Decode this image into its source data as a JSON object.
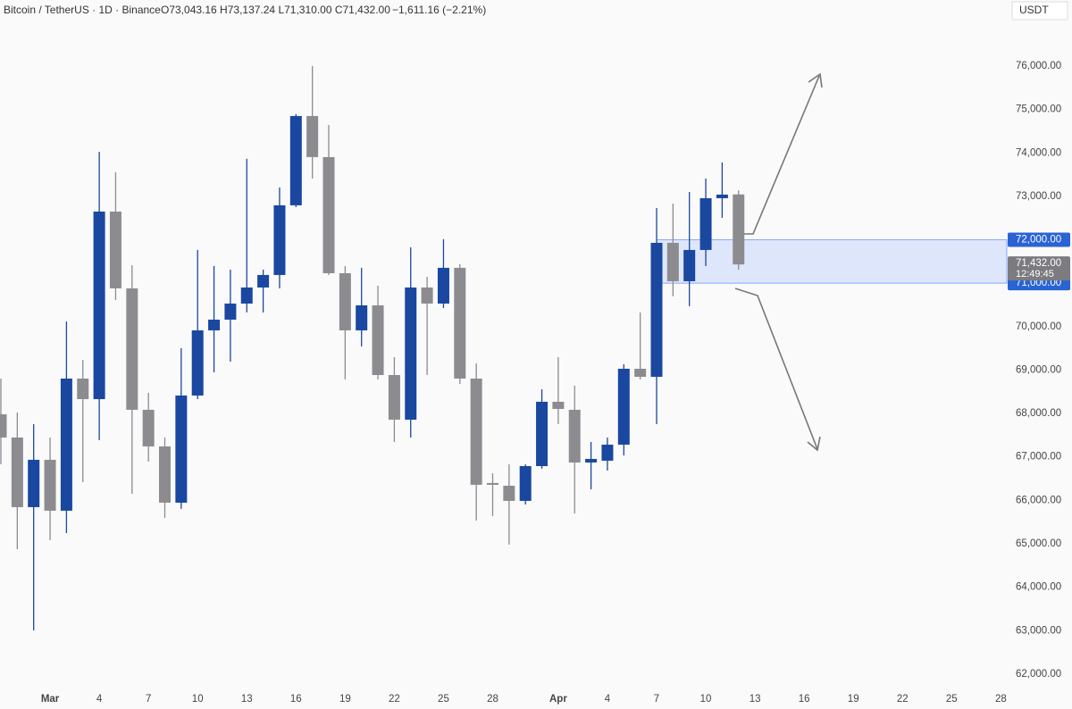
{
  "chart_data": {
    "type": "candlestick",
    "title": "Bitcoin / TetherUS · 1D · Binance",
    "ohlc_text": "O73,043.16 H73,137.24 L71,310.00 C71,432.00",
    "change_text": "−1,611.16 (−2.21%)",
    "currency": "USDT",
    "categories": [
      null,
      null,
      null,
      "Mar",
      null,
      null,
      "4",
      null,
      null,
      "7",
      null,
      null,
      "10",
      null,
      null,
      "13",
      null,
      null,
      "16",
      null,
      null,
      "19",
      null,
      null,
      "22",
      null,
      null,
      "25",
      null,
      null,
      "28",
      null,
      null,
      null,
      "Apr",
      null,
      null,
      "4",
      null,
      null,
      "7",
      null,
      null,
      "10",
      null,
      null,
      "13",
      null,
      null,
      "16",
      null,
      null,
      "19",
      null,
      null,
      "22",
      null,
      null,
      "25",
      null,
      null,
      "28"
    ],
    "open": [
      67982,
      67447,
      65844,
      66934,
      65762,
      68804,
      68331,
      72649,
      70881,
      68085,
      67242,
      65947,
      68414,
      69914,
      70161,
      70531,
      70901,
      71189,
      72793,
      74849,
      73903,
      71230,
      69914,
      70490,
      68886,
      67858,
      70901,
      70531,
      71354,
      68804,
      66400,
      66337,
      65988,
      66789,
      68270,
      68085,
      66872,
      66913,
      67283,
      69030,
      68845,
      71929,
      71045,
      71765,
      72957,
      73043.16,
      null,
      null,
      null,
      null,
      null,
      null,
      null,
      null,
      null,
      null,
      null,
      null,
      null,
      null,
      null,
      null
    ],
    "high": [
      68804,
      68023,
      67756,
      67447,
      70120,
      69236,
      74026,
      73554,
      71415,
      68475,
      67447,
      69503,
      71765,
      71395,
      71313,
      73862,
      71313,
      73204,
      74890,
      76000,
      74643,
      71395,
      71354,
      70942,
      69298,
      71826,
      71148,
      72012,
      71436,
      69154,
      66625,
      66831,
      66831,
      68558,
      69298,
      68640,
      67344,
      67447,
      69133,
      70326,
      72731,
      72834,
      73101,
      73410,
      73780,
      73137.24,
      null,
      null,
      null,
      null,
      null,
      null,
      null,
      null,
      null,
      null,
      null,
      null,
      null,
      null,
      null,
      null
    ],
    "low": [
      66830,
      64877,
      63006,
      65083,
      65247,
      66420,
      67386,
      70613,
      66152,
      66892,
      65597,
      65803,
      68331,
      68948,
      69195,
      70326,
      70326,
      70881,
      72752,
      73410,
      71189,
      68784,
      69544,
      68784,
      67344,
      67447,
      68886,
      70428,
      68681,
      65535,
      65638,
      64980,
      65905,
      66728,
      67756,
      65700,
      66255,
      66686,
      67036,
      68784,
      67756,
      70696,
      70470,
      71395,
      72505,
      71310,
      null,
      null,
      null,
      null,
      null,
      null,
      null,
      null,
      null,
      null,
      null,
      null,
      null,
      null,
      null,
      null
    ],
    "close": [
      67447,
      65844,
      66934,
      65762,
      68804,
      68331,
      72649,
      70881,
      68085,
      67242,
      65947,
      68414,
      69914,
      70161,
      70531,
      70901,
      71189,
      72793,
      74849,
      73903,
      71230,
      69914,
      70490,
      68886,
      67858,
      70901,
      70531,
      71354,
      68804,
      66358,
      66358,
      65988,
      66789,
      68270,
      68105,
      66872,
      66954,
      67283,
      69030,
      68845,
      71929,
      71045,
      71765,
      72957,
      73040,
      71432,
      null,
      null,
      null,
      null,
      null,
      null,
      null,
      null,
      null,
      null,
      null,
      null,
      null,
      null,
      null,
      null
    ],
    "up_color": "#1a479f",
    "down_color": "#8c8c90",
    "ylim": [
      61690,
      77520
    ],
    "yticks": [
      {
        "value": 62000,
        "label": "62,000.00"
      },
      {
        "value": 63000,
        "label": "63,000.00"
      },
      {
        "value": 64000,
        "label": "64,000.00"
      },
      {
        "value": 65000,
        "label": "65,000.00"
      },
      {
        "value": 66000,
        "label": "66,000.00"
      },
      {
        "value": 67000,
        "label": "67,000.00"
      },
      {
        "value": 68000,
        "label": "68,000.00"
      },
      {
        "value": 69000,
        "label": "69,000.00"
      },
      {
        "value": 70000,
        "label": "70,000.00"
      },
      {
        "value": 73000,
        "label": "73,000.00"
      },
      {
        "value": 74000,
        "label": "74,000.00"
      },
      {
        "value": 75000,
        "label": "75,000.00"
      },
      {
        "value": 76000,
        "label": "76,000.00"
      }
    ],
    "zone": {
      "high": {
        "value": 72000,
        "label": "72,000.00"
      },
      "low": {
        "value": 71000,
        "label": "71,000.00"
      },
      "color": "#2962ff"
    },
    "last_price": {
      "value": 71432,
      "label": "71,432.00"
    },
    "countdown": "12:49:45",
    "grid": false
  }
}
